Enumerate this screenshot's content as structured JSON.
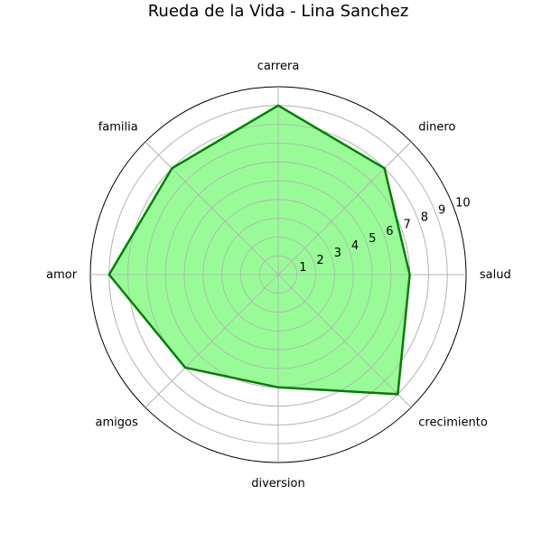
{
  "chart_data": {
    "type": "radar",
    "title": "Rueda de la Vida - Lina Sanchez",
    "categories": [
      "salud",
      "dinero",
      "carrera",
      "familia",
      "amor",
      "amigos",
      "diversion",
      "crecimiento"
    ],
    "values": [
      7,
      8,
      9,
      8,
      9,
      7,
      6,
      9
    ],
    "rlim": [
      0,
      10
    ],
    "rticks": [
      1,
      2,
      3,
      4,
      5,
      6,
      7,
      8,
      9,
      10
    ],
    "grid": true,
    "colors": {
      "line": "#008000",
      "fill": "#98fb98",
      "grid": "#b0b0b0",
      "outer": "#000000"
    }
  }
}
